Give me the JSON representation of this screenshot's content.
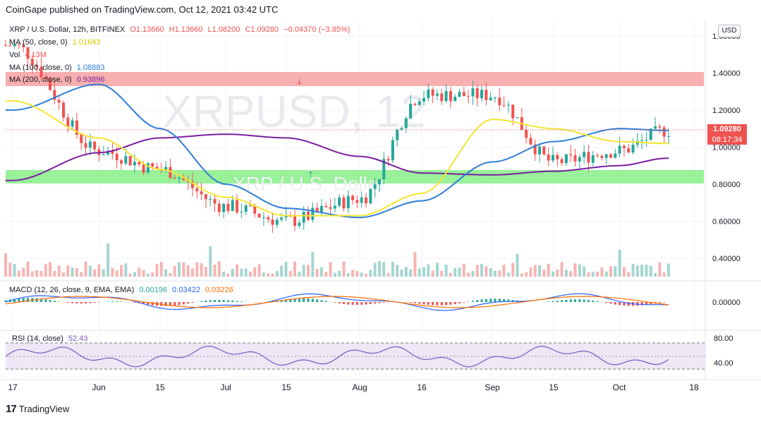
{
  "header": {
    "text": "CoinGape published on TradingView.com, Oct 12, 2021 03:42 UTC"
  },
  "watermark": {
    "symbol": "XRPUSD, 12",
    "name": "XRP / U.S. Dollar"
  },
  "legend": {
    "symbol": "XRP / U.S. Dollar, 12h, BITFINEX",
    "o": "O1.13660",
    "h": "H1.13660",
    "l": "L1.08200",
    "c": "C1.09280",
    "change": "−0.04370 (−3.85%)",
    "ma50_label": "MA (50, close, 0)",
    "ma50_value": "1.01643",
    "vol_label": "Vol",
    "vol_value": "4.13M",
    "ma100_label": "MA (100, close, 0)",
    "ma100_value": "1.08883",
    "ma200_label": "MA (200, close, 0)",
    "ma200_value": "0.93896"
  },
  "macd_legend": {
    "label": "MACD (12, 26, close, 9, EMA, EMA)",
    "v1": "0.00196",
    "v2": "0.03422",
    "v3": "0.03226"
  },
  "rsi_legend": {
    "label": "RSI (14, close)",
    "value": "52.43"
  },
  "price_axis": {
    "currency_button": "USD",
    "ticks": [
      "1.60000",
      "1.40000",
      "1.20000",
      "1.00000",
      "0.80000",
      "0.60000",
      "0.40000"
    ],
    "last_price": "1.09280",
    "countdown": "08:17:34"
  },
  "macd_axis": {
    "ticks": [
      "0.00000"
    ]
  },
  "rsi_axis": {
    "ticks": [
      "80.00",
      "40.00"
    ]
  },
  "time_axis": {
    "ticks": [
      "17",
      "Jun",
      "15",
      "Jul",
      "15",
      "Aug",
      "16",
      "Sep",
      "15",
      "Oct",
      "18"
    ]
  },
  "footer": {
    "brand": "TradingView"
  },
  "colors": {
    "up": "#26a69a",
    "down": "#ef5350",
    "ma50": "#f5e533",
    "ma100": "#2f7ed8",
    "ma200": "#7b1fa2",
    "resistance_zone": "#f7a6a6",
    "support_zone": "#8ef08e",
    "last_price_tag": "#ef5350",
    "rsi_band": "#ede7f6"
  },
  "chart_data": {
    "type": "line",
    "title": "XRP / U.S. Dollar, 12h, BITFINEX",
    "x": [
      "May 17",
      "Jun 1",
      "Jun 15",
      "Jul 1",
      "Jul 15",
      "Aug 1",
      "Aug 16",
      "Sep 1",
      "Sep 15",
      "Oct 1",
      "Oct 11"
    ],
    "ylim": [
      0.3,
      1.67
    ],
    "series": [
      {
        "name": "Price (close)",
        "values": [
          1.55,
          0.98,
          0.88,
          0.68,
          0.6,
          0.72,
          1.28,
          1.28,
          0.92,
          0.98,
          1.09
        ]
      },
      {
        "name": "MA (50, close, 0)",
        "values": [
          1.25,
          1.05,
          0.88,
          0.73,
          0.63,
          0.63,
          0.75,
          1.15,
          1.1,
          1.03,
          1.02
        ]
      },
      {
        "name": "MA (100, close, 0)",
        "values": [
          1.2,
          1.34,
          1.1,
          0.8,
          0.67,
          0.62,
          0.71,
          0.92,
          1.03,
          1.1,
          1.09
        ]
      },
      {
        "name": "MA (200, close, 0)",
        "values": [
          0.82,
          0.97,
          1.05,
          1.07,
          1.05,
          0.95,
          0.86,
          0.85,
          0.87,
          0.9,
          0.94
        ]
      }
    ],
    "zones": [
      {
        "name": "resistance",
        "from": 1.32,
        "to": 1.4
      },
      {
        "name": "support",
        "from": 0.8,
        "to": 0.87
      }
    ],
    "grid": true
  }
}
